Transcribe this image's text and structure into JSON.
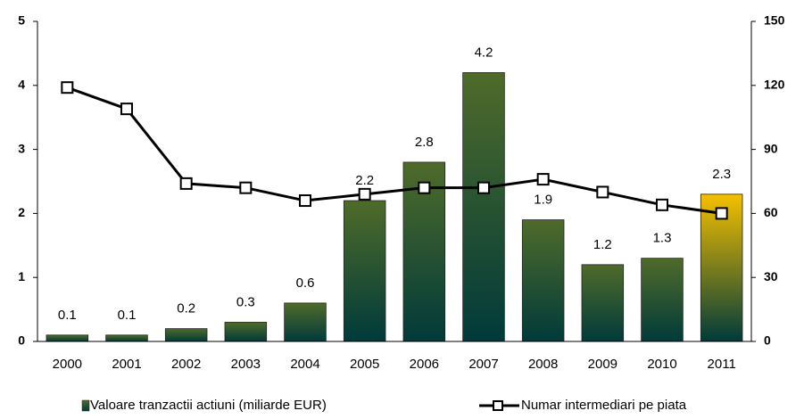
{
  "chart_data": {
    "type": "bar",
    "categories": [
      "2000",
      "2001",
      "2002",
      "2003",
      "2004",
      "2005",
      "2006",
      "2007",
      "2008",
      "2009",
      "2010",
      "2011"
    ],
    "series": [
      {
        "name": "Valoare tranzactii actiuni (miliarde EUR)",
        "type": "bar",
        "color": "#4f6b2a",
        "colors": [
          "#4f6b2a",
          "#4f6b2a",
          "#4f6b2a",
          "#4f6b2a",
          "#4f6b2a",
          "#4f6b2a",
          "#4f6b2a",
          "#4f6b2a",
          "#4f6b2a",
          "#4f6b2a",
          "#4f6b2a",
          "#f5c000"
        ],
        "values": [
          0.1,
          0.1,
          0.2,
          0.3,
          0.6,
          2.2,
          2.8,
          4.2,
          1.9,
          1.2,
          1.3,
          2.3
        ]
      },
      {
        "name": "Numar intermediari pe piata",
        "type": "line",
        "axis": "y2",
        "color": "#000000",
        "values": [
          119,
          109,
          74,
          72,
          66,
          69,
          72,
          72,
          76,
          70,
          64,
          60
        ]
      }
    ],
    "ylim": [
      0,
      5
    ],
    "yticks": [
      0,
      1,
      2,
      3,
      4,
      5
    ],
    "y2lim": [
      0,
      150
    ],
    "y2ticks": [
      0,
      30,
      60,
      90,
      120,
      150
    ],
    "legend": "bottom"
  }
}
